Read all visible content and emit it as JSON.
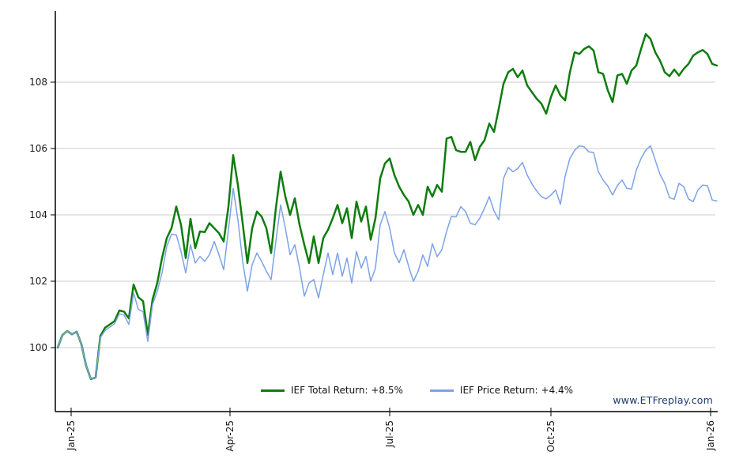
{
  "watermark": {
    "text": "www.ETFreplay.com"
  },
  "chart_data": {
    "type": "line",
    "title": "",
    "xlabel": "",
    "ylabel": "",
    "grid": true,
    "legend_position": "bottom-center",
    "x_axis": {
      "ticks": [
        {
          "label": "Jan-25",
          "pos": 0.0204
        },
        {
          "label": "Apr-25",
          "pos": 0.2614
        },
        {
          "label": "Jul-25",
          "pos": 0.5036
        },
        {
          "label": "Oct-25",
          "pos": 0.7482
        },
        {
          "label": "Jan-26",
          "pos": 0.9904
        }
      ]
    },
    "y_axis": {
      "ticks": [
        100,
        102,
        104,
        106,
        108
      ],
      "ylim": [
        98.1,
        110.1
      ]
    },
    "series": [
      {
        "name": "IEF Total Return",
        "legend_label": "IEF Total Return: +8.5%",
        "return_pct": "+8.5%",
        "color": "#0e7c0e",
        "stroke_width": 2.5,
        "values": [
          100.0,
          100.38,
          100.5,
          100.4,
          100.48,
          100.1,
          99.45,
          99.05,
          99.1,
          100.35,
          100.6,
          100.7,
          100.8,
          101.12,
          101.08,
          100.88,
          101.9,
          101.52,
          101.4,
          100.38,
          101.45,
          101.95,
          102.7,
          103.3,
          103.6,
          104.25,
          103.7,
          102.7,
          103.88,
          103.0,
          103.5,
          103.48,
          103.75,
          103.6,
          103.45,
          103.2,
          104.25,
          105.8,
          104.9,
          103.75,
          102.55,
          103.6,
          104.1,
          103.95,
          103.6,
          102.85,
          104.2,
          105.3,
          104.55,
          104.0,
          104.5,
          103.7,
          103.1,
          102.55,
          103.35,
          102.55,
          103.3,
          103.55,
          103.9,
          104.3,
          103.75,
          104.2,
          103.3,
          104.4,
          103.8,
          104.25,
          103.25,
          103.9,
          105.1,
          105.55,
          105.7,
          105.2,
          104.85,
          104.6,
          104.4,
          104.0,
          104.3,
          104.0,
          104.85,
          104.55,
          104.9,
          104.7,
          106.3,
          106.35,
          105.95,
          105.9,
          105.9,
          106.2,
          105.65,
          106.05,
          106.25,
          106.75,
          106.5,
          107.2,
          107.95,
          108.3,
          108.4,
          108.15,
          108.35,
          107.9,
          107.7,
          107.5,
          107.35,
          107.05,
          107.55,
          107.9,
          107.6,
          107.45,
          108.3,
          108.9,
          108.85,
          109.0,
          109.08,
          108.95,
          108.3,
          108.25,
          107.75,
          107.4,
          108.2,
          108.25,
          107.95,
          108.35,
          108.5,
          109.0,
          109.45,
          109.3,
          108.9,
          108.65,
          108.3,
          108.18,
          108.38,
          108.2,
          108.4,
          108.55,
          108.8,
          108.9,
          108.97,
          108.85,
          108.55,
          108.5
        ]
      },
      {
        "name": "IEF Price Return",
        "legend_label": "IEF Price Return: +4.4%",
        "return_pct": "+4.4%",
        "color": "#7ca3e6",
        "stroke_width": 1.5,
        "values": [
          100.0,
          100.38,
          100.5,
          100.4,
          100.48,
          100.1,
          99.45,
          99.05,
          99.1,
          100.3,
          100.52,
          100.62,
          100.72,
          101.02,
          100.98,
          100.7,
          101.65,
          101.15,
          101.08,
          100.18,
          101.3,
          101.7,
          102.25,
          103.05,
          103.42,
          103.4,
          102.9,
          102.25,
          103.1,
          102.55,
          102.75,
          102.6,
          102.8,
          103.2,
          102.8,
          102.35,
          103.55,
          104.8,
          103.85,
          102.6,
          101.7,
          102.5,
          102.85,
          102.6,
          102.3,
          102.05,
          103.2,
          104.3,
          103.6,
          102.8,
          103.1,
          102.4,
          101.55,
          101.95,
          102.05,
          101.5,
          102.2,
          102.85,
          102.2,
          102.85,
          102.15,
          102.7,
          101.95,
          102.9,
          102.4,
          102.75,
          102.0,
          102.4,
          103.7,
          104.1,
          103.6,
          102.85,
          102.56,
          102.95,
          102.45,
          102.0,
          102.3,
          102.79,
          102.45,
          103.13,
          102.74,
          102.95,
          103.5,
          103.95,
          103.94,
          104.25,
          104.1,
          103.75,
          103.7,
          103.9,
          104.2,
          104.55,
          104.12,
          103.85,
          105.1,
          105.43,
          105.3,
          105.4,
          105.58,
          105.2,
          104.93,
          104.72,
          104.55,
          104.48,
          104.6,
          104.75,
          104.32,
          105.17,
          105.7,
          105.95,
          106.08,
          106.05,
          105.9,
          105.88,
          105.3,
          105.05,
          104.87,
          104.6,
          104.88,
          105.05,
          104.8,
          104.78,
          105.35,
          105.7,
          105.95,
          106.08,
          105.65,
          105.22,
          104.95,
          104.52,
          104.47,
          104.95,
          104.85,
          104.48,
          104.4,
          104.75,
          104.9,
          104.88,
          104.45,
          104.42
        ]
      }
    ],
    "colors": {
      "grid": "#cccccc",
      "axis": "#000000",
      "tick_label": "#1a1a1a",
      "watermark": "#1b3a6b",
      "background": "#ffffff"
    }
  }
}
